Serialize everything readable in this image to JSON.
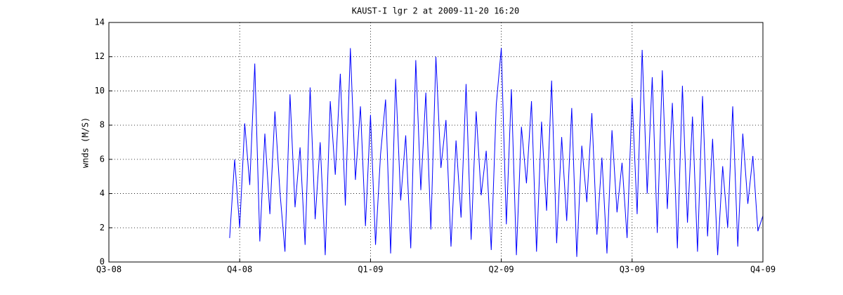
{
  "chart_data": {
    "type": "line",
    "title": "KAUST-I lgr 2 at 2009-11-20 16:20",
    "y_label": "wnds (M/S)",
    "categories": [
      "Q3-08",
      null,
      null,
      null,
      null,
      null,
      null,
      null,
      null,
      null,
      null,
      null,
      null,
      null,
      null,
      null,
      null,
      null,
      null,
      null,
      null,
      null,
      null,
      null,
      null,
      null,
      "Q4-08",
      null,
      null,
      null,
      null,
      null,
      null,
      null,
      null,
      null,
      null,
      null,
      null,
      null,
      null,
      null,
      null,
      null,
      null,
      null,
      null,
      null,
      null,
      null,
      null,
      null,
      "Q1-09",
      null,
      null,
      null,
      null,
      null,
      null,
      null,
      null,
      null,
      null,
      null,
      null,
      null,
      null,
      null,
      null,
      null,
      null,
      null,
      null,
      null,
      null,
      null,
      null,
      null,
      "Q2-09",
      null,
      null,
      null,
      null,
      null,
      null,
      null,
      null,
      null,
      null,
      null,
      null,
      null,
      null,
      null,
      null,
      null,
      null,
      null,
      null,
      null,
      null,
      null,
      null,
      null,
      "Q3-09",
      null,
      null,
      null,
      null,
      null,
      null,
      null,
      null,
      null,
      null,
      null,
      null,
      null,
      null,
      null,
      null,
      null,
      null,
      null,
      null,
      null,
      null,
      null,
      null,
      null,
      "Q4-09"
    ],
    "series": [
      {
        "color": "#0000ff",
        "values": [
          null,
          null,
          null,
          null,
          null,
          null,
          null,
          null,
          null,
          null,
          null,
          null,
          null,
          null,
          null,
          null,
          null,
          null,
          null,
          null,
          null,
          null,
          null,
          null,
          1.4,
          6.0,
          2.0,
          8.1,
          4.5,
          11.6,
          1.2,
          7.5,
          2.8,
          8.8,
          4.1,
          0.6,
          9.8,
          3.2,
          6.7,
          1.0,
          10.2,
          2.5,
          7.0,
          0.4,
          9.4,
          5.1,
          11.0,
          3.3,
          12.5,
          4.8,
          9.1,
          2.1,
          8.6,
          1.0,
          6.3,
          9.5,
          0.5,
          10.7,
          3.6,
          7.4,
          0.8,
          11.8,
          4.2,
          9.9,
          1.9,
          12.0,
          5.5,
          8.3,
          0.9,
          7.1,
          2.6,
          10.4,
          1.3,
          8.8,
          3.9,
          6.5,
          0.7,
          9.2,
          12.5,
          2.2,
          10.1,
          0.4,
          7.9,
          4.6,
          9.4,
          0.6,
          8.2,
          3.0,
          10.6,
          1.1,
          7.3,
          2.4,
          9.0,
          0.3,
          6.8,
          3.5,
          8.7,
          1.6,
          6.1,
          0.5,
          7.7,
          2.9,
          5.8,
          1.4,
          9.6,
          2.8,
          12.4,
          4.0,
          10.8,
          1.7,
          11.2,
          3.1,
          9.3,
          0.8,
          10.3,
          2.3,
          8.5,
          0.6,
          9.7,
          1.5,
          7.2,
          0.4,
          5.6,
          2.0,
          9.1,
          0.9,
          7.5,
          3.4,
          6.2,
          1.8,
          2.7
        ]
      }
    ],
    "ylim": [
      0,
      14
    ],
    "yticks": [
      0,
      2,
      4,
      6,
      8,
      10,
      12,
      14
    ],
    "grid": true
  }
}
